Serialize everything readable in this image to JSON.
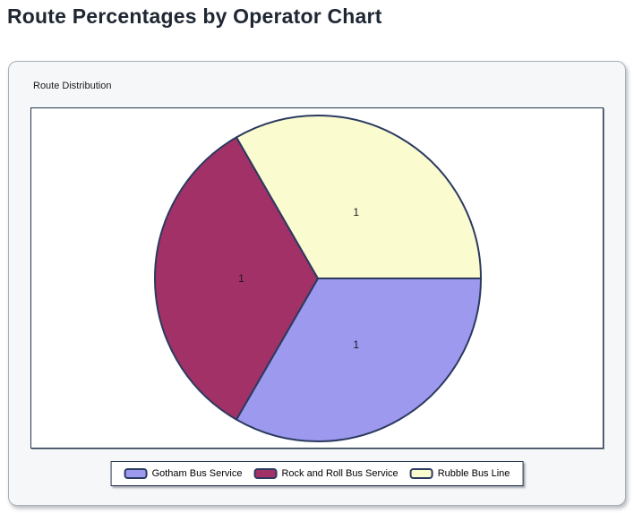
{
  "title": "Route Percentages by Operator Chart",
  "panel": {
    "label": "Route Distribution"
  },
  "colors": {
    "title_text": "#1f2733",
    "panel_background": "#f6f7f9",
    "panel_border": "#a9afb9",
    "plot_background": "#ffffff",
    "plot_border": "#26364e",
    "slice_border": "#2b3a5f",
    "slice_label_text": "#1a1a1a"
  },
  "chart_data": {
    "type": "pie",
    "title": "Route Distribution",
    "legend_position": "bottom",
    "start_angle_deg": 0,
    "direction": "clockwise",
    "data_labels_shown": true,
    "categories": [
      "Gotham Bus Service",
      "Rock and Roll Bus Service",
      "Rubble Bus Line"
    ],
    "values": [
      1,
      1,
      1
    ],
    "slices": [
      {
        "label": "Gotham Bus Service",
        "value": 1,
        "data_label": "1",
        "color": "#9c99ef"
      },
      {
        "label": "Rock and Roll Bus Service",
        "value": 1,
        "data_label": "1",
        "color": "#a13166"
      },
      {
        "label": "Rubble Bus Line",
        "value": 1,
        "data_label": "1",
        "color": "#fbfbd0"
      }
    ]
  }
}
